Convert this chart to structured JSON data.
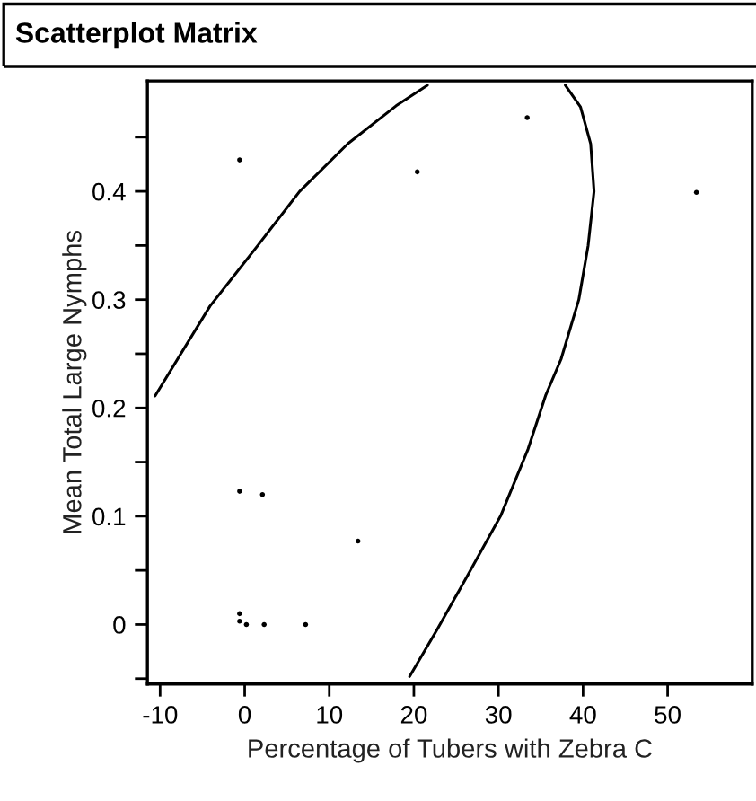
{
  "chart_data": {
    "type": "scatter",
    "title": "Scatterplot Matrix",
    "xlabel": "Percentage of Tubers with Zebra C",
    "ylabel": "Mean Total Large Nymphs",
    "xlim": [
      -11.5,
      60
    ],
    "ylim": [
      -0.055,
      0.502
    ],
    "xticks": [
      -10,
      0,
      10,
      20,
      30,
      40,
      50
    ],
    "yticks": [
      {
        "value": -0.05,
        "label": null
      },
      0,
      {
        "value": 0.05,
        "label": null
      },
      0.1,
      {
        "value": 0.15,
        "label": null
      },
      0.2,
      {
        "value": 0.25,
        "label": null
      },
      0.3,
      {
        "value": 0.35,
        "label": null
      },
      0.4,
      {
        "value": 0.45,
        "label": null
      }
    ],
    "grid": false,
    "legend": false,
    "series": [
      {
        "marker": "circle",
        "color": "#000000",
        "x": [
          -0.6,
          20.4,
          33.4,
          53.4,
          -0.6,
          2.1,
          13.4,
          -0.6,
          -0.6,
          0.2,
          2.3,
          7.2
        ],
        "values": [
          0.429,
          0.418,
          0.468,
          0.399,
          0.123,
          0.12,
          0.077,
          0.01,
          0.003,
          0,
          0,
          0
        ]
      },
      {
        "type": "line",
        "marker": "none",
        "color": "#000000",
        "x": [
          -10.6,
          -4.1,
          1.55,
          6.5,
          12.2,
          17.9,
          21.6
        ],
        "values": [
          0.211,
          0.294,
          0.35,
          0.4,
          0.444,
          0.479,
          0.498
        ]
      },
      {
        "type": "line",
        "marker": "none",
        "color": "#000000",
        "x": [
          37.9,
          39.7,
          40.9,
          41.3,
          40.6,
          39.5,
          37.4,
          35.6,
          33.5,
          30.3,
          26.4,
          22.8,
          19.5
        ],
        "values": [
          0.498,
          0.478,
          0.444,
          0.4,
          0.35,
          0.3,
          0.245,
          0.212,
          0.162,
          0.101,
          0.046,
          -0.004,
          -0.048
        ]
      }
    ]
  }
}
